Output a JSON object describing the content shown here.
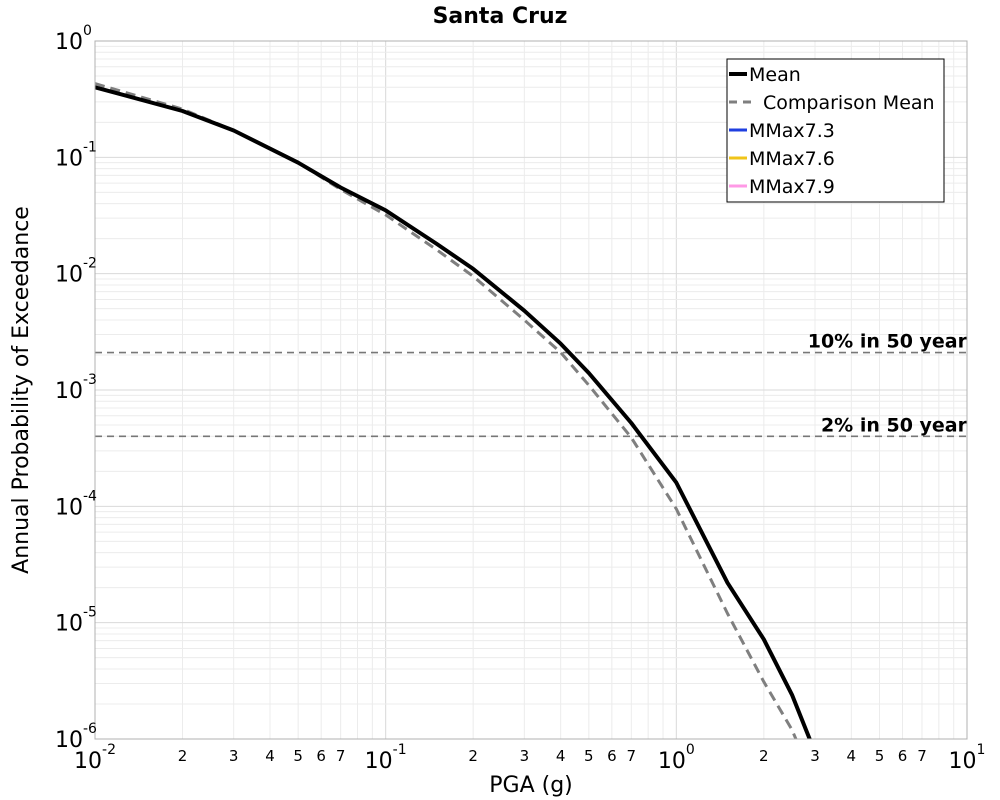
{
  "chart_data": {
    "type": "line",
    "title": "Santa Cruz",
    "xlabel": "PGA (g)",
    "ylabel": "Annual Probability of Exceedance",
    "x_scale": "log",
    "y_scale": "log",
    "xlim": [
      0.01,
      10
    ],
    "ylim": [
      1e-06,
      1
    ],
    "grid": true,
    "legend_position": "top-right",
    "x_major_ticks": [
      {
        "value": 0.01,
        "base": "10",
        "exp": "-2"
      },
      {
        "value": 0.1,
        "base": "10",
        "exp": "-1"
      },
      {
        "value": 1,
        "base": "10",
        "exp": "0"
      },
      {
        "value": 10,
        "base": "10",
        "exp": "1"
      }
    ],
    "x_minor_tick_labels": [
      "2",
      "3",
      "4",
      "5",
      "6",
      "7"
    ],
    "y_major_ticks": [
      {
        "value": 1,
        "base": "10",
        "exp": "0"
      },
      {
        "value": 0.1,
        "base": "10",
        "exp": "-1"
      },
      {
        "value": 0.01,
        "base": "10",
        "exp": "-2"
      },
      {
        "value": 0.001,
        "base": "10",
        "exp": "-3"
      },
      {
        "value": 0.0001,
        "base": "10",
        "exp": "-4"
      },
      {
        "value": 1e-05,
        "base": "10",
        "exp": "-5"
      },
      {
        "value": 1e-06,
        "base": "10",
        "exp": "-6"
      }
    ],
    "hazard_levels": [
      {
        "label": "10% in 50 year",
        "y": 0.0021
      },
      {
        "label": "2% in 50 year",
        "y": 0.0004
      }
    ],
    "series": [
      {
        "name": "Mean",
        "color": "#000000",
        "style": "solid",
        "x": [
          0.01,
          0.02,
          0.03,
          0.05,
          0.07,
          0.1,
          0.15,
          0.2,
          0.3,
          0.4,
          0.5,
          0.7,
          1.0,
          1.5,
          2.0,
          2.5,
          2.9
        ],
        "y": [
          0.4,
          0.25,
          0.17,
          0.09,
          0.055,
          0.035,
          0.018,
          0.011,
          0.0048,
          0.0025,
          0.0014,
          0.00052,
          0.00016,
          2.2e-05,
          7.2e-06,
          2.4e-06,
          9.5e-07
        ]
      },
      {
        "name": "Comparison Mean",
        "color": "#7f7f7f",
        "style": "dashed",
        "x": [
          0.01,
          0.02,
          0.03,
          0.05,
          0.07,
          0.1,
          0.15,
          0.2,
          0.3,
          0.4,
          0.5,
          0.7,
          1.0,
          1.5,
          2.0,
          2.5,
          2.6
        ],
        "y": [
          0.43,
          0.26,
          0.17,
          0.09,
          0.053,
          0.032,
          0.016,
          0.0095,
          0.004,
          0.0021,
          0.0011,
          0.00039,
          9.5e-05,
          1.2e-05,
          3.1e-06,
          1.2e-06,
          9.5e-07
        ]
      },
      {
        "name": "MMax7.3",
        "color": "#1f3fe0",
        "style": "solid",
        "x": [],
        "y": []
      },
      {
        "name": "MMax7.6",
        "color": "#f0c419",
        "style": "solid",
        "x": [],
        "y": []
      },
      {
        "name": "MMax7.9",
        "color": "#ff99e6",
        "style": "solid",
        "x": [],
        "y": []
      }
    ]
  }
}
